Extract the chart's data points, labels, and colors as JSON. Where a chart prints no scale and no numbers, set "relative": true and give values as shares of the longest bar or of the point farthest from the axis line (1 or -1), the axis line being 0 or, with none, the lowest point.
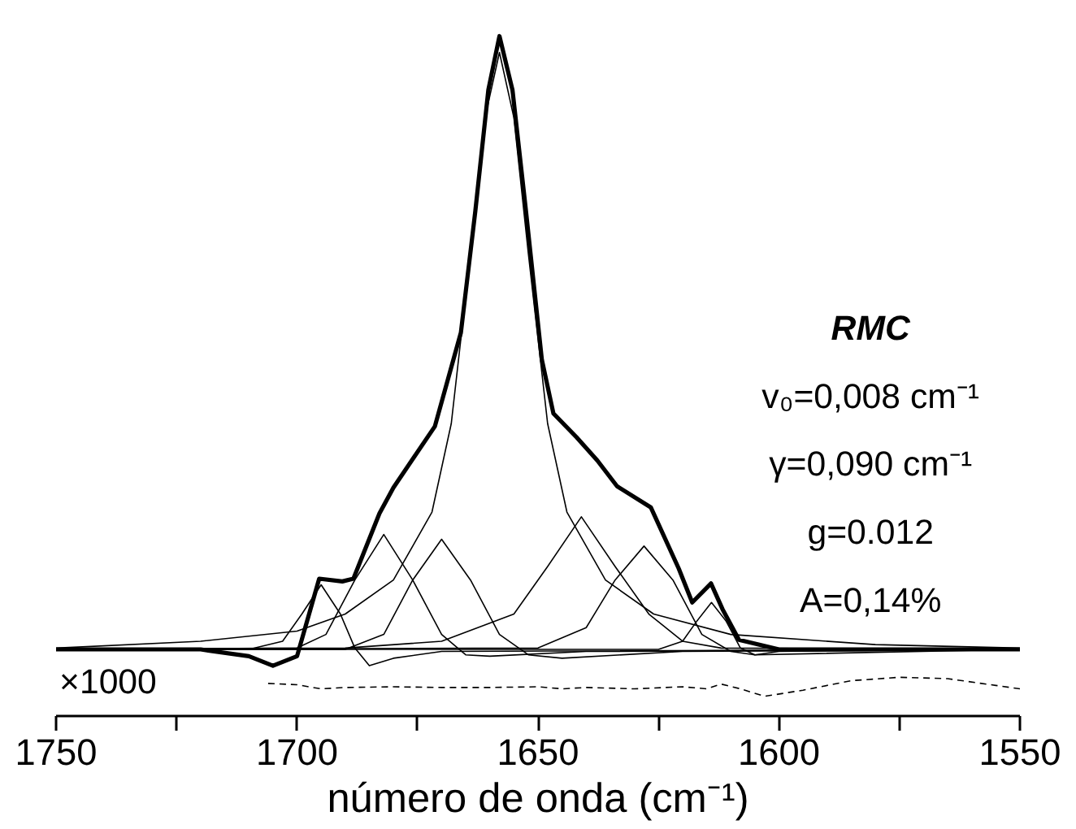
{
  "chart_data": {
    "type": "line",
    "relative": true,
    "xlabel": "número de onda (cm⁻¹)",
    "xlim": [
      1750,
      1550
    ],
    "xticks": [
      1750,
      {
        "value": 1725,
        "label": null
      },
      1700,
      {
        "value": 1675,
        "label": null
      },
      1650,
      {
        "value": 1625,
        "label": null
      },
      1600,
      {
        "value": 1575,
        "label": null
      },
      1550
    ],
    "grid": false,
    "marker": "none",
    "annotations": [
      "RMC",
      "v₀=0,008 cm⁻¹",
      "γ=0,090 cm⁻¹",
      "g=0.012",
      "A=0,14%",
      "×1000"
    ],
    "series": [
      {
        "color": "#000000",
        "line_style": "solid",
        "x": [
          1750,
          1720,
          1710,
          1705,
          1700,
          1695.4,
          1690.6,
          1688.3,
          1682.9,
          1680,
          1671.4,
          1666,
          1663,
          1660.3,
          1658,
          1655.3,
          1652.5,
          1649.2,
          1646.8,
          1642,
          1637.7,
          1633.6,
          1626.6,
          1620.8,
          1618,
          1614.1,
          1611.7,
          1608.3,
          1600,
          1550
        ],
        "values": [
          0.098,
          0.098,
          0.088,
          0.074,
          0.088,
          0.202,
          0.198,
          0.202,
          0.298,
          0.336,
          0.426,
          0.564,
          0.743,
          0.921,
          1.0,
          0.921,
          0.743,
          0.524,
          0.445,
          0.41,
          0.376,
          0.338,
          0.307,
          0.217,
          0.167,
          0.195,
          0.157,
          0.112,
          0.098,
          0.098
        ]
      },
      {
        "color": "#000000",
        "line_style": "solid",
        "x": [
          1750,
          1720,
          1700,
          1690,
          1680,
          1672,
          1668,
          1664,
          1661,
          1658,
          1655,
          1652,
          1648,
          1644,
          1636,
          1626,
          1610,
          1580,
          1550
        ],
        "values": [
          0.1,
          0.11,
          0.125,
          0.15,
          0.2,
          0.3,
          0.43,
          0.68,
          0.88,
          0.976,
          0.88,
          0.68,
          0.43,
          0.3,
          0.2,
          0.15,
          0.12,
          0.105,
          0.1
        ]
      },
      {
        "color": "#000000",
        "line_style": "solid",
        "x": [
          1750,
          1710,
          1703,
          1699,
          1695,
          1691,
          1688,
          1685,
          1680,
          1670,
          1550
        ],
        "values": [
          0.098,
          0.098,
          0.11,
          0.15,
          0.193,
          0.15,
          0.1,
          0.074,
          0.085,
          0.095,
          0.098
        ]
      },
      {
        "color": "#000000",
        "line_style": "solid",
        "x": [
          1750,
          1700,
          1694,
          1688,
          1682,
          1676,
          1670,
          1665,
          1660,
          1640,
          1550
        ],
        "values": [
          0.098,
          0.1,
          0.12,
          0.2,
          0.267,
          0.2,
          0.12,
          0.09,
          0.088,
          0.095,
          0.098
        ]
      },
      {
        "color": "#000000",
        "line_style": "solid",
        "x": [
          1750,
          1690,
          1682,
          1676,
          1670,
          1664,
          1658,
          1652,
          1645,
          1620,
          1550
        ],
        "values": [
          0.098,
          0.098,
          0.12,
          0.2,
          0.26,
          0.2,
          0.12,
          0.09,
          0.085,
          0.095,
          0.098
        ]
      },
      {
        "color": "#000000",
        "line_style": "solid",
        "x": [
          1750,
          1690,
          1670,
          1655,
          1648,
          1641,
          1634,
          1627,
          1620,
          1612,
          1550
        ],
        "values": [
          0.098,
          0.1,
          0.11,
          0.15,
          0.22,
          0.293,
          0.22,
          0.15,
          0.11,
          0.1,
          0.098
        ]
      },
      {
        "color": "#000000",
        "line_style": "solid",
        "x": [
          1750,
          1650,
          1640,
          1634,
          1628,
          1622,
          1616,
          1610,
          1605,
          1550
        ],
        "values": [
          0.098,
          0.1,
          0.13,
          0.2,
          0.25,
          0.2,
          0.12,
          0.095,
          0.09,
          0.098
        ]
      },
      {
        "color": "#000000",
        "line_style": "solid",
        "x": [
          1750,
          1625,
          1620,
          1617,
          1614,
          1611,
          1608,
          1605,
          1600,
          1550
        ],
        "values": [
          0.098,
          0.098,
          0.11,
          0.14,
          0.167,
          0.14,
          0.1,
          0.09,
          0.095,
          0.098
        ]
      },
      {
        "color": "#000000",
        "line_style": "dashed",
        "x": [
          1706,
          1700,
          1695,
          1690,
          1680,
          1670,
          1660,
          1650,
          1645,
          1640,
          1630,
          1620,
          1615,
          1612,
          1608,
          1603,
          1595,
          1585,
          1575,
          1565,
          1555,
          1550
        ],
        "values": [
          0.048,
          0.046,
          0.04,
          0.042,
          0.043,
          0.042,
          0.042,
          0.043,
          0.04,
          0.042,
          0.04,
          0.043,
          0.04,
          0.047,
          0.04,
          0.029,
          0.038,
          0.052,
          0.057,
          0.055,
          0.045,
          0.04
        ]
      }
    ]
  }
}
